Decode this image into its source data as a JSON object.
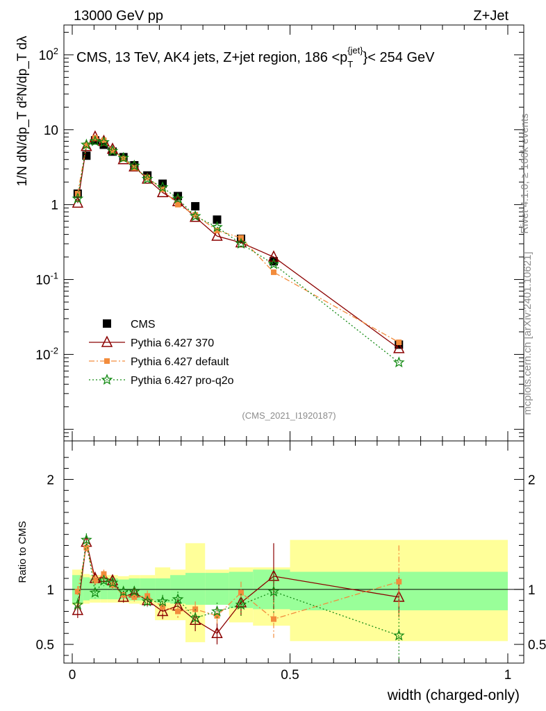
{
  "header": {
    "left": "13000 GeV pp",
    "right": "Z+Jet"
  },
  "plot_title": "CMS, 13 TeV, AK4 jets, Z+jet region, 186 <p",
  "plot_title_sup": "{jet}",
  "plot_title_sub": "T",
  "plot_title_end": "}< 254 GeV",
  "side_labels": {
    "rivet": "Rivet 4.1.0, ≥ 100k events",
    "mcplots": "mcplots.cern.ch [arXiv:2401.10621]"
  },
  "analysis_id": "(CMS_2021_I1920187)",
  "y_axis_main": "1/N dN/dp_T d²N/dp_T dλ",
  "y_axis_ratio": "Ratio to CMS",
  "x_axis_label": "width (charged-only)",
  "colors": {
    "cms": "#000000",
    "p370": "#8b0000",
    "pdefault": "#f28c3c",
    "pq2o": "#138a13",
    "band_inner": "#99ff99",
    "band_outer": "#ffff99"
  },
  "chart_data": [
    {
      "type": "scatter",
      "title": "CMS, 13 TeV, AK4 jets, Z+jet region, 186 < pT jet < 254 GeV",
      "xlabel": "width (charged-only)",
      "ylabel": "1/N dN/dpT d2N/dpT dlambda",
      "yscale": "log",
      "xlim": [
        0,
        1
      ],
      "ylim": [
        0.0007,
        250
      ],
      "y_tick_labels": [
        "10^-2",
        "10^-1",
        "1",
        "10",
        "10^2"
      ],
      "x_tick_labels": [
        "0",
        "0.5",
        "1"
      ],
      "x": [
        0.0125,
        0.0325,
        0.0525,
        0.0725,
        0.0925,
        0.1175,
        0.1425,
        0.1725,
        0.2075,
        0.2425,
        0.2825,
        0.3325,
        0.3875,
        0.4625,
        0.75
      ],
      "series": [
        {
          "name": "CMS",
          "values": [
            1.4,
            4.5,
            7.2,
            6.3,
            5.1,
            4.3,
            3.35,
            2.45,
            1.9,
            1.3,
            0.95,
            0.63,
            0.35,
            0.175,
            0.0135
          ]
        },
        {
          "name": "Pythia 6.427 370",
          "values": [
            1.05,
            6.0,
            8.0,
            7.0,
            5.5,
            4.0,
            3.2,
            2.2,
            1.45,
            1.1,
            0.68,
            0.38,
            0.31,
            0.2,
            0.012
          ]
        },
        {
          "name": "Pythia 6.427 default",
          "values": [
            1.4,
            6.2,
            7.8,
            7.2,
            5.3,
            4.1,
            3.1,
            2.3,
            1.6,
            1.0,
            0.73,
            0.45,
            0.36,
            0.125,
            0.0145
          ]
        },
        {
          "name": "Pythia 6.427 pro-q2o",
          "values": [
            1.2,
            6.3,
            7.0,
            6.8,
            5.2,
            4.2,
            3.3,
            2.2,
            1.7,
            1.2,
            0.7,
            0.5,
            0.3,
            0.16,
            0.0078
          ]
        }
      ],
      "legend": [
        "CMS",
        "Pythia 6.427 370",
        "Pythia 6.427 default",
        "Pythia 6.427 pro-q2o"
      ],
      "legend_position": "lower-left"
    },
    {
      "type": "line",
      "title": "Ratio to CMS",
      "xlabel": "width (charged-only)",
      "ylabel": "Ratio to CMS",
      "xlim": [
        0,
        1
      ],
      "ylim": [
        0.33,
        2.35
      ],
      "y_tick_labels": [
        "0.5",
        "1",
        "2"
      ],
      "x_tick_labels": [
        "0",
        "0.5",
        "1"
      ],
      "bins": [
        [
          0.0,
          0.025
        ],
        [
          0.025,
          0.04
        ],
        [
          0.04,
          0.065
        ],
        [
          0.065,
          0.08
        ],
        [
          0.08,
          0.105
        ],
        [
          0.105,
          0.13
        ],
        [
          0.13,
          0.155
        ],
        [
          0.155,
          0.19
        ],
        [
          0.19,
          0.225
        ],
        [
          0.225,
          0.26
        ],
        [
          0.26,
          0.305
        ],
        [
          0.305,
          0.36
        ],
        [
          0.36,
          0.415
        ],
        [
          0.415,
          0.5
        ],
        [
          0.5,
          1.0
        ]
      ],
      "band_inner": [
        [
          0.88,
          1.13
        ],
        [
          0.9,
          1.11
        ],
        [
          0.91,
          1.1
        ],
        [
          0.91,
          1.09
        ],
        [
          0.91,
          1.1
        ],
        [
          0.91,
          1.09
        ],
        [
          0.9,
          1.1
        ],
        [
          0.9,
          1.1
        ],
        [
          0.88,
          1.1
        ],
        [
          0.87,
          1.13
        ],
        [
          0.86,
          1.15
        ],
        [
          0.86,
          1.15
        ],
        [
          0.83,
          1.16
        ],
        [
          0.82,
          1.18
        ],
        [
          0.81,
          1.16
        ]
      ],
      "band_outer": [
        [
          0.86,
          1.18
        ],
        [
          0.87,
          1.14
        ],
        [
          0.88,
          1.13
        ],
        [
          0.88,
          1.13
        ],
        [
          0.88,
          1.13
        ],
        [
          0.88,
          1.12
        ],
        [
          0.87,
          1.13
        ],
        [
          0.86,
          1.13
        ],
        [
          0.72,
          1.2
        ],
        [
          0.72,
          1.18
        ],
        [
          0.52,
          1.42
        ],
        [
          0.86,
          1.18
        ],
        [
          0.7,
          1.2
        ],
        [
          0.67,
          1.2
        ],
        [
          0.53,
          1.45
        ]
      ],
      "x": [
        0.0125,
        0.0325,
        0.0525,
        0.0725,
        0.0925,
        0.1175,
        0.1425,
        0.1725,
        0.2075,
        0.2425,
        0.2825,
        0.3325,
        0.3875,
        0.4625,
        0.75
      ],
      "series": [
        {
          "name": "Pythia 6.427 370",
          "values": [
            0.81,
            1.43,
            1.1,
            1.11,
            1.08,
            0.93,
            0.97,
            0.9,
            0.8,
            0.85,
            0.72,
            0.6,
            0.88,
            1.12,
            0.93
          ],
          "errors": [
            0.07,
            0.06,
            0.06,
            0.05,
            0.05,
            0.05,
            0.05,
            0.05,
            0.07,
            0.07,
            0.1,
            0.1,
            0.12,
            0.3,
            0.18
          ]
        },
        {
          "name": "Pythia 6.427 default",
          "values": [
            0.98,
            1.38,
            1.08,
            1.14,
            1.04,
            0.95,
            0.93,
            0.94,
            0.84,
            0.8,
            0.82,
            0.76,
            0.97,
            0.73,
            1.07
          ],
          "errors": [
            0.05,
            0.05,
            0.05,
            0.04,
            0.04,
            0.04,
            0.04,
            0.05,
            0.06,
            0.06,
            0.07,
            0.08,
            0.1,
            0.17,
            0.33
          ]
        },
        {
          "name": "Pythia 6.427 pro-q2o",
          "values": [
            0.86,
            1.45,
            0.97,
            1.08,
            1.06,
            0.98,
            0.98,
            0.89,
            0.89,
            0.91,
            0.74,
            0.8,
            0.86,
            0.98,
            0.58
          ],
          "errors": [
            0.06,
            0.06,
            0.05,
            0.05,
            0.05,
            0.04,
            0.05,
            0.05,
            0.06,
            0.07,
            0.08,
            0.08,
            0.1,
            0.2,
            0.25
          ]
        }
      ]
    }
  ]
}
